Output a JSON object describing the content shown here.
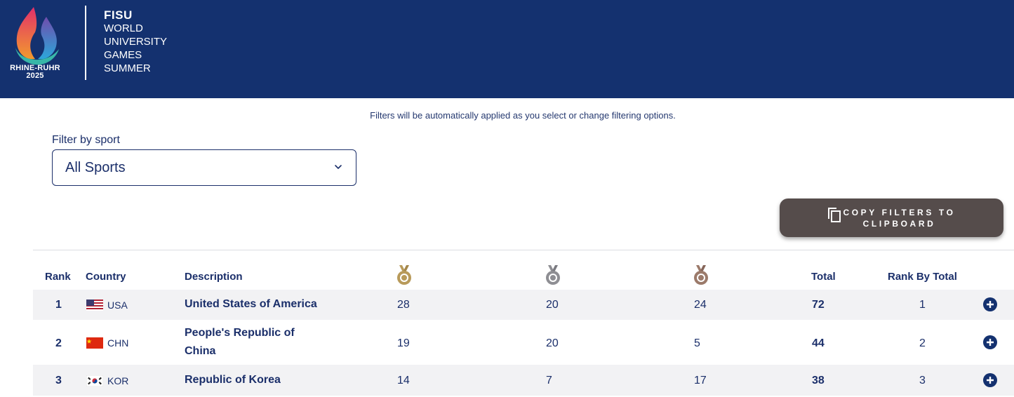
{
  "header": {
    "logo_city": "RHINE-RUHR",
    "logo_year": "2025",
    "brand_lines": [
      "FISU",
      "WORLD",
      "UNIVERSITY",
      "GAMES",
      "SUMMER"
    ]
  },
  "notice": "Filters will be automatically applied as you select or change filtering options.",
  "filter": {
    "label": "Filter by sport",
    "selected": "All Sports"
  },
  "copy_button": {
    "line1": "COPY FILTERS TO",
    "line2": "CLIPBOARD",
    "icon": "copy-icon"
  },
  "table": {
    "headers": {
      "rank": "Rank",
      "country": "Country",
      "description": "Description",
      "gold_icon": "gold-medal-icon",
      "silver_icon": "silver-medal-icon",
      "bronze_icon": "bronze-medal-icon",
      "total": "Total",
      "rank_by_total": "Rank By Total"
    },
    "rows": [
      {
        "rank": "1",
        "code": "USA",
        "description": "United States of America",
        "gold": "28",
        "silver": "20",
        "bronze": "24",
        "total": "72",
        "rank_by_total": "1",
        "flag": "us-flag-icon"
      },
      {
        "rank": "2",
        "code": "CHN",
        "description": "People's Republic of China",
        "gold": "19",
        "silver": "20",
        "bronze": "5",
        "total": "44",
        "rank_by_total": "2",
        "flag": "china-flag-icon"
      },
      {
        "rank": "3",
        "code": "KOR",
        "description": "Republic of Korea",
        "gold": "14",
        "silver": "7",
        "bronze": "17",
        "total": "38",
        "rank_by_total": "3",
        "flag": "korea-flag-icon"
      }
    ]
  },
  "colors": {
    "header_bg": "#14316f",
    "text": "#1b2f6a",
    "button_bg": "#554c4b",
    "gold": "#b89a5a",
    "silver": "#8e8e93",
    "bronze": "#9b7a6a"
  }
}
